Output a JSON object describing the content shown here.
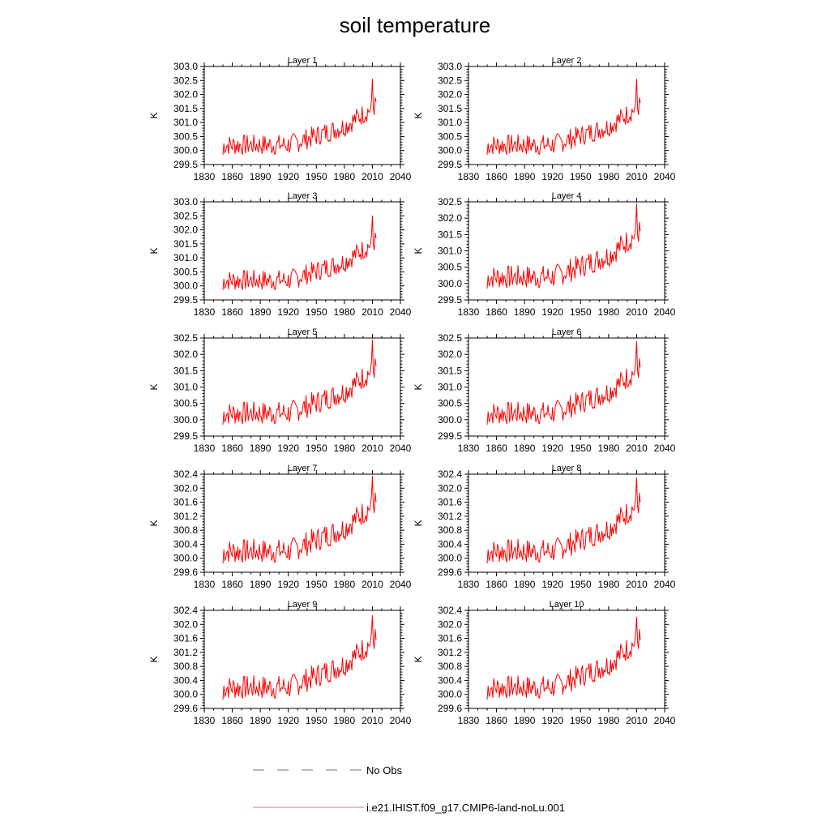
{
  "figure": {
    "title": "soil temperature",
    "legend": {
      "items": [
        {
          "label": "No Obs",
          "color": "#6b6bb5",
          "dash": "dashed"
        },
        {
          "label": "i.e21.IHIST.f09_g17.CMIP6-land-noLu.001",
          "color": "#ff6b6b",
          "dash": "solid"
        }
      ]
    }
  },
  "chart_data": [
    {
      "type": "line",
      "title": "Layer 1",
      "xlabel": "",
      "ylabel": "K",
      "xlim": [
        1830,
        2040
      ],
      "ylim": [
        299.5,
        303.0
      ],
      "xticks": [
        "1830",
        "1860",
        "1890",
        "1920",
        "1950",
        "1980",
        "2010",
        "2040"
      ],
      "yticks": [
        "299.5",
        "300.0",
        "300.5",
        "301.0",
        "301.5",
        "302.0",
        "302.5",
        "303.0"
      ],
      "x_start": 1850,
      "amp": 1.0,
      "peak": 302.55,
      "end": 301.75,
      "series": [
        {
          "name": "i.e21.IHIST.f09_g17.CMIP6-land-noLu.001",
          "color": "#ff0000"
        }
      ]
    },
    {
      "type": "line",
      "title": "Layer 2",
      "xlabel": "",
      "ylabel": "K",
      "xlim": [
        1830,
        2040
      ],
      "ylim": [
        299.5,
        303.0
      ],
      "xticks": [
        "1830",
        "1860",
        "1890",
        "1920",
        "1950",
        "1980",
        "2010",
        "2040"
      ],
      "yticks": [
        "299.5",
        "300.0",
        "300.5",
        "301.0",
        "301.5",
        "302.0",
        "302.5",
        "303.0"
      ],
      "x_start": 1850,
      "amp": 1.0,
      "peak": 302.55,
      "end": 301.7,
      "series": [
        {
          "name": "i.e21.IHIST.f09_g17.CMIP6-land-noLu.001",
          "color": "#ff0000"
        }
      ]
    },
    {
      "type": "line",
      "title": "Layer 3",
      "xlabel": "",
      "ylabel": "K",
      "xlim": [
        1830,
        2040
      ],
      "ylim": [
        299.5,
        303.0
      ],
      "xticks": [
        "1830",
        "1860",
        "1890",
        "1920",
        "1950",
        "1980",
        "2010",
        "2040"
      ],
      "yticks": [
        "299.5",
        "300.0",
        "300.5",
        "301.0",
        "301.5",
        "302.0",
        "302.5",
        "303.0"
      ],
      "x_start": 1850,
      "amp": 1.0,
      "peak": 302.5,
      "end": 301.7,
      "series": [
        {
          "name": "i.e21.IHIST.f09_g17.CMIP6-land-noLu.001",
          "color": "#ff0000"
        }
      ]
    },
    {
      "type": "line",
      "title": "Layer 4",
      "xlabel": "",
      "ylabel": "K",
      "xlim": [
        1830,
        2040
      ],
      "ylim": [
        299.5,
        302.5
      ],
      "xticks": [
        "1830",
        "1860",
        "1890",
        "1920",
        "1950",
        "1980",
        "2010",
        "2040"
      ],
      "yticks": [
        "299.5",
        "300.0",
        "300.5",
        "301.0",
        "301.5",
        "302.0",
        "302.5"
      ],
      "x_start": 1850,
      "amp": 0.97,
      "peak": 302.45,
      "end": 301.6,
      "series": [
        {
          "name": "i.e21.IHIST.f09_g17.CMIP6-land-noLu.001",
          "color": "#ff0000"
        }
      ]
    },
    {
      "type": "line",
      "title": "Layer 5",
      "xlabel": "",
      "ylabel": "K",
      "xlim": [
        1830,
        2040
      ],
      "ylim": [
        299.5,
        302.5
      ],
      "xticks": [
        "1830",
        "1860",
        "1890",
        "1920",
        "1950",
        "1980",
        "2010",
        "2040"
      ],
      "yticks": [
        "299.5",
        "300.0",
        "300.5",
        "301.0",
        "301.5",
        "302.0",
        "302.5"
      ],
      "x_start": 1850,
      "amp": 0.96,
      "peak": 302.45,
      "end": 301.65,
      "series": [
        {
          "name": "i.e21.IHIST.f09_g17.CMIP6-land-noLu.001",
          "color": "#ff0000"
        }
      ]
    },
    {
      "type": "line",
      "title": "Layer 6",
      "xlabel": "",
      "ylabel": "K",
      "xlim": [
        1830,
        2040
      ],
      "ylim": [
        299.5,
        302.5
      ],
      "xticks": [
        "1830",
        "1860",
        "1890",
        "1920",
        "1950",
        "1980",
        "2010",
        "2040"
      ],
      "yticks": [
        "299.5",
        "300.0",
        "300.5",
        "301.0",
        "301.5",
        "302.0",
        "302.5"
      ],
      "x_start": 1850,
      "amp": 0.95,
      "peak": 302.4,
      "end": 301.6,
      "series": [
        {
          "name": "i.e21.IHIST.f09_g17.CMIP6-land-noLu.001",
          "color": "#ff0000"
        }
      ]
    },
    {
      "type": "line",
      "title": "Layer 7",
      "xlabel": "",
      "ylabel": "K",
      "xlim": [
        1830,
        2040
      ],
      "ylim": [
        299.6,
        302.4
      ],
      "xticks": [
        "1830",
        "1860",
        "1890",
        "1920",
        "1950",
        "1980",
        "2010",
        "2040"
      ],
      "yticks": [
        "299.6",
        "300.0",
        "300.4",
        "300.8",
        "301.2",
        "301.6",
        "302.0",
        "302.4"
      ],
      "x_start": 1850,
      "amp": 0.94,
      "peak": 302.35,
      "end": 301.6,
      "series": [
        {
          "name": "i.e21.IHIST.f09_g17.CMIP6-land-noLu.001",
          "color": "#ff0000"
        }
      ]
    },
    {
      "type": "line",
      "title": "Layer 8",
      "xlabel": "",
      "ylabel": "K",
      "xlim": [
        1830,
        2040
      ],
      "ylim": [
        299.6,
        302.4
      ],
      "xticks": [
        "1830",
        "1860",
        "1890",
        "1920",
        "1950",
        "1980",
        "2010",
        "2040"
      ],
      "yticks": [
        "299.6",
        "300.0",
        "300.4",
        "300.8",
        "301.2",
        "301.6",
        "302.0",
        "302.4"
      ],
      "x_start": 1850,
      "amp": 0.93,
      "peak": 302.3,
      "end": 301.6,
      "series": [
        {
          "name": "i.e21.IHIST.f09_g17.CMIP6-land-noLu.001",
          "color": "#ff0000"
        }
      ]
    },
    {
      "type": "line",
      "title": "Layer 9",
      "xlabel": "",
      "ylabel": "K",
      "xlim": [
        1830,
        2040
      ],
      "ylim": [
        299.6,
        302.4
      ],
      "xticks": [
        "1830",
        "1860",
        "1890",
        "1920",
        "1950",
        "1980",
        "2010",
        "2040"
      ],
      "yticks": [
        "299.6",
        "300.0",
        "300.4",
        "300.8",
        "301.2",
        "301.6",
        "302.0",
        "302.4"
      ],
      "x_start": 1850,
      "amp": 0.92,
      "peak": 302.25,
      "end": 301.55,
      "series": [
        {
          "name": "i.e21.IHIST.f09_g17.CMIP6-land-noLu.001",
          "color": "#ff0000"
        }
      ]
    },
    {
      "type": "line",
      "title": "Layer 10",
      "xlabel": "",
      "ylabel": "K",
      "xlim": [
        1830,
        2040
      ],
      "ylim": [
        299.6,
        302.4
      ],
      "xticks": [
        "1830",
        "1860",
        "1890",
        "1920",
        "1950",
        "1980",
        "2010",
        "2040"
      ],
      "yticks": [
        "299.6",
        "300.0",
        "300.4",
        "300.8",
        "301.2",
        "301.6",
        "302.0",
        "302.4"
      ],
      "x_start": 1850,
      "amp": 0.9,
      "peak": 302.2,
      "end": 301.55,
      "series": [
        {
          "name": "i.e21.IHIST.f09_g17.CMIP6-land-noLu.001",
          "color": "#ff0000"
        }
      ]
    }
  ]
}
